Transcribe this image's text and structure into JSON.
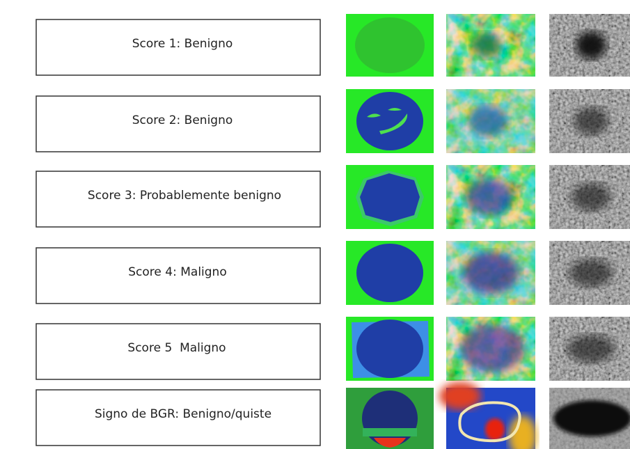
{
  "rows": [
    {
      "label": "Score 1: Benigno"
    },
    {
      "label": "Score 2: Benigno"
    },
    {
      "label": "Score 3: Probablemente benigno"
    },
    {
      "label": "Score 4: Maligno"
    },
    {
      "label": "Score 5  Maligno"
    },
    {
      "label": "Signo de BGR: Benigno/quiste"
    }
  ]
}
